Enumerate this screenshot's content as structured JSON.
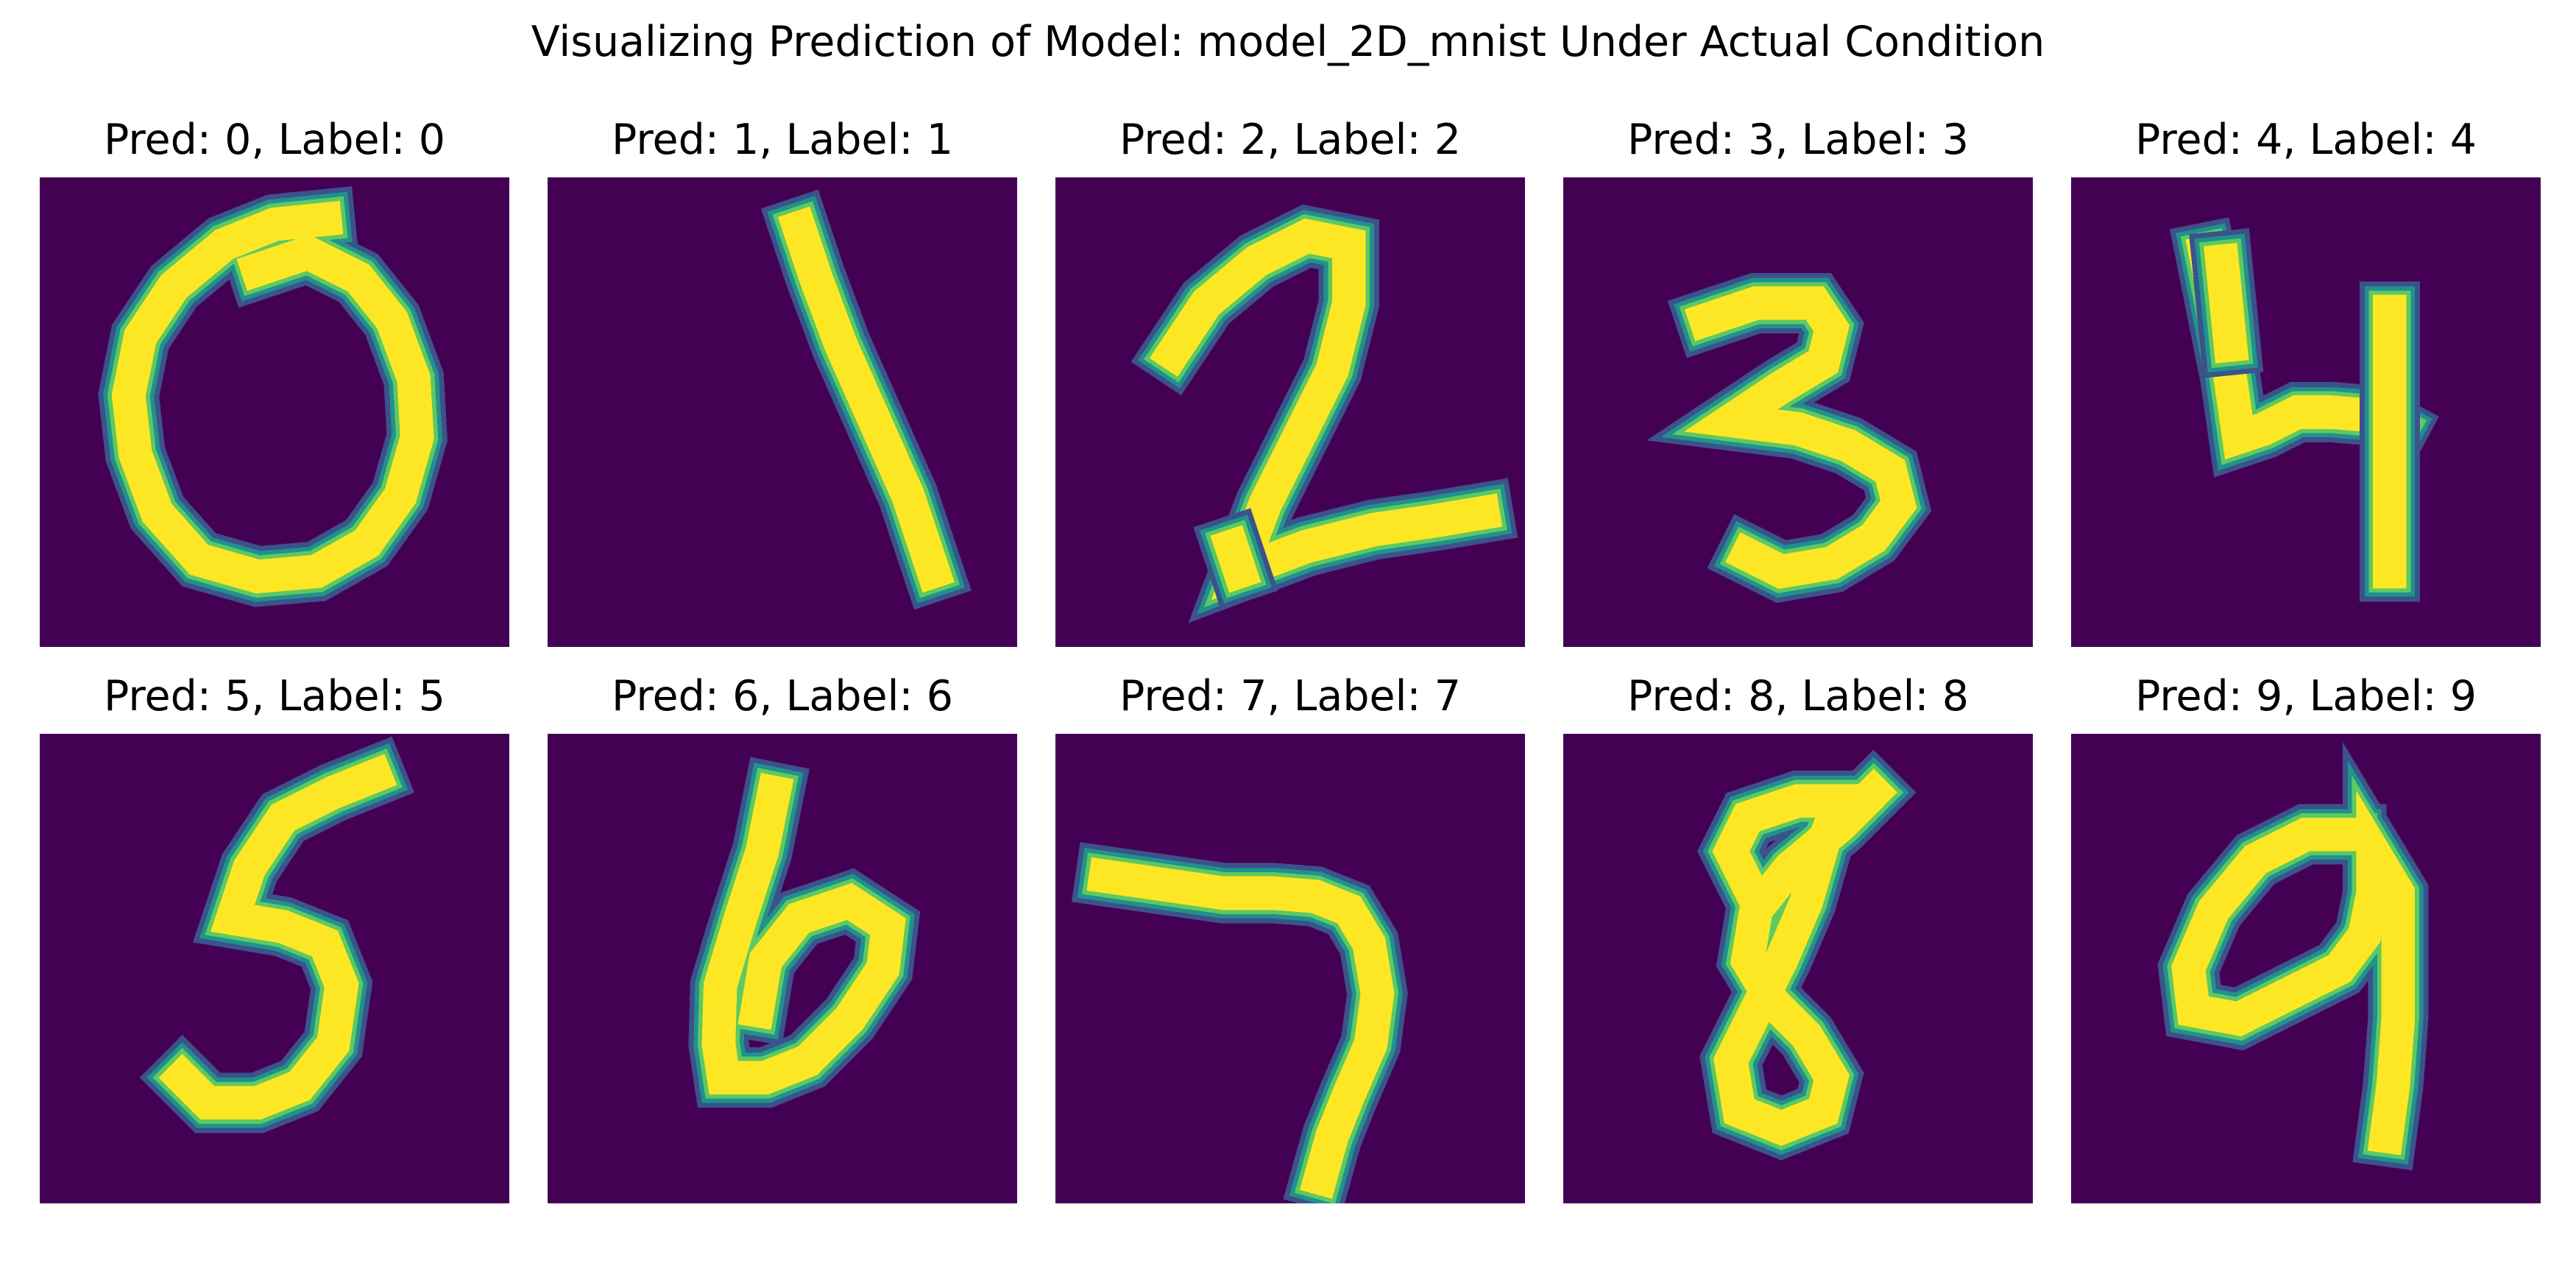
{
  "figure": {
    "suptitle": "Visualizing Prediction of Model: model_2D_mnist Under Actual Condition"
  },
  "chart_data": {
    "type": "image-grid",
    "title": "Visualizing Prediction of Model: model_2D_mnist Under Actual Condition",
    "rows": 2,
    "cols": 5,
    "colormap": "viridis",
    "background_color": "#440154",
    "stroke_color": "#fde725",
    "edge_colors": [
      "#3b528b",
      "#21918c",
      "#5ec962"
    ],
    "panels": [
      {
        "title": "Pred: 0, Label: 0",
        "pred": 0,
        "label": 0
      },
      {
        "title": "Pred: 1, Label: 1",
        "pred": 1,
        "label": 1
      },
      {
        "title": "Pred: 2, Label: 2",
        "pred": 2,
        "label": 2
      },
      {
        "title": "Pred: 3, Label: 3",
        "pred": 3,
        "label": 3
      },
      {
        "title": "Pred: 4, Label: 4",
        "pred": 4,
        "label": 4
      },
      {
        "title": "Pred: 5, Label: 5",
        "pred": 5,
        "label": 5
      },
      {
        "title": "Pred: 6, Label: 6",
        "pred": 6,
        "label": 6
      },
      {
        "title": "Pred: 7, Label: 7",
        "pred": 7,
        "label": 7
      },
      {
        "title": "Pred: 8, Label: 8",
        "pred": 8,
        "label": 8
      },
      {
        "title": "Pred: 9, Label: 9",
        "pred": 9,
        "label": 9
      }
    ]
  }
}
